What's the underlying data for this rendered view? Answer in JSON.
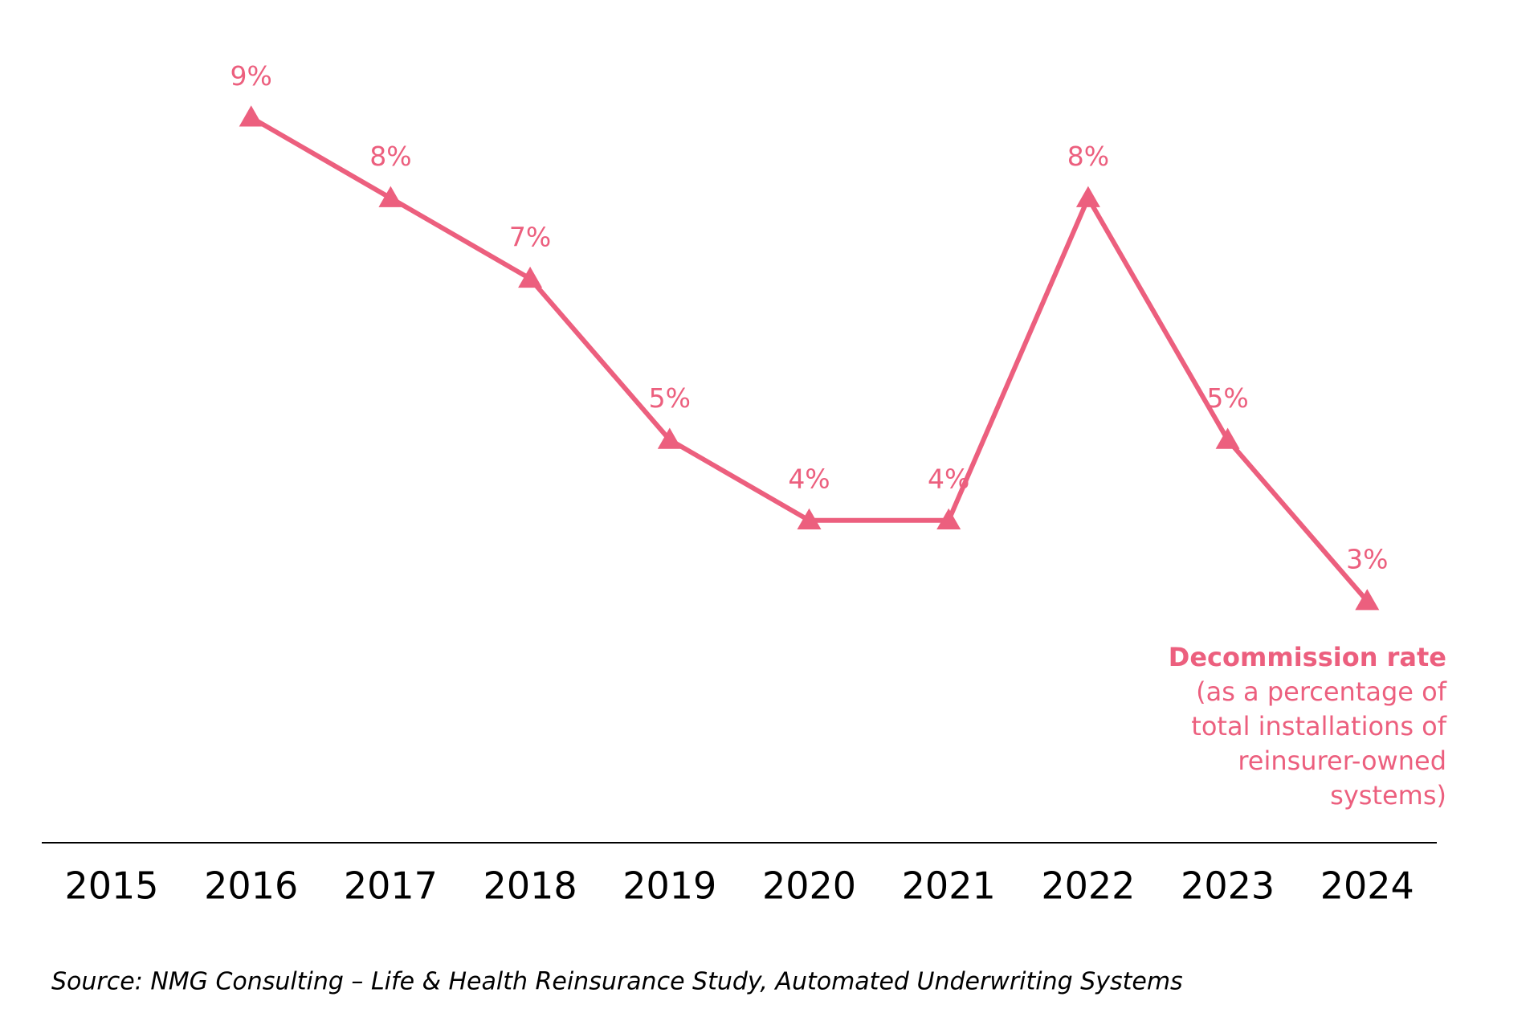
{
  "chart_data": {
    "type": "line",
    "categories": [
      "2015",
      "2016",
      "2017",
      "2018",
      "2019",
      "2020",
      "2021",
      "2022",
      "2023",
      "2024"
    ],
    "values": [
      null,
      9,
      8,
      7,
      5,
      4,
      4,
      8,
      5,
      3
    ],
    "value_labels": [
      null,
      "9%",
      "8%",
      "7%",
      "5%",
      "4%",
      "4%",
      "8%",
      "5%",
      "3%"
    ],
    "color": "#ec5f7e",
    "ylim": [
      0,
      10
    ],
    "annotation": {
      "title": "Decommission rate",
      "lines": [
        "(as a percentage of",
        "total installations of",
        "reinsurer-owned",
        "systems)"
      ]
    },
    "source": "Source: NMG Consulting – Life & Health Reinsurance Study, Automated Underwriting Systems"
  }
}
